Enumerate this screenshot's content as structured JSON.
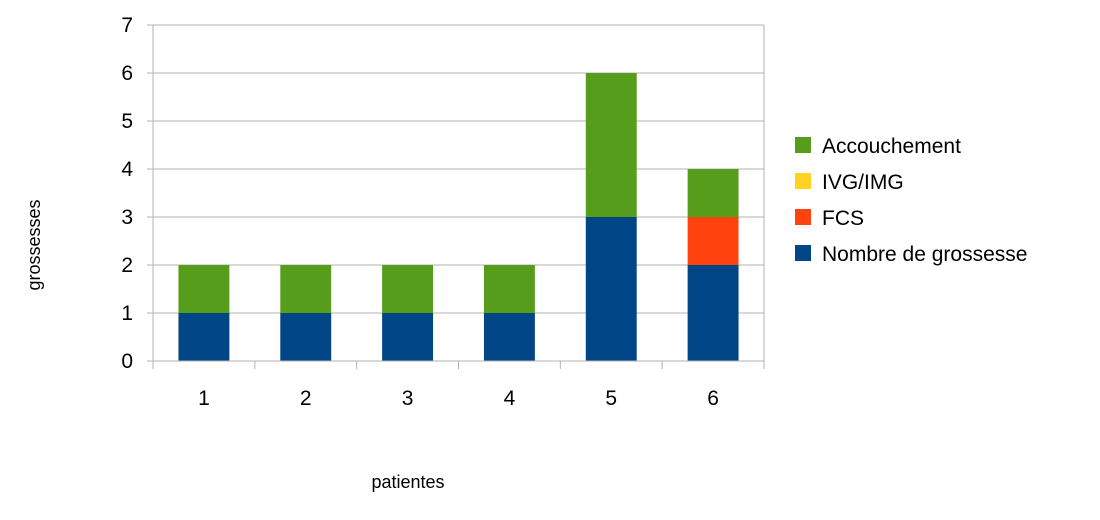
{
  "chart_data": {
    "type": "bar",
    "stacked": true,
    "categories": [
      "1",
      "2",
      "3",
      "4",
      "5",
      "6"
    ],
    "series": [
      {
        "name": "Nombre de grossesse",
        "color": "#004586",
        "values": [
          1,
          1,
          1,
          1,
          3,
          2
        ]
      },
      {
        "name": "FCS",
        "color": "#ff420e",
        "values": [
          0,
          0,
          0,
          0,
          0,
          1
        ]
      },
      {
        "name": "IVG/IMG",
        "color": "#ffd320",
        "values": [
          0,
          0,
          0,
          0,
          0,
          0
        ]
      },
      {
        "name": "Accouchement",
        "color": "#579d1c",
        "values": [
          1,
          1,
          1,
          1,
          3,
          1
        ]
      }
    ],
    "legend_order": [
      "Accouchement",
      "IVG/IMG",
      "FCS",
      "Nombre de grossesse"
    ],
    "xlabel": "patientes",
    "ylabel": "grossesses",
    "ylim": [
      0,
      7
    ],
    "yticks": [
      "0",
      "1",
      "2",
      "3",
      "4",
      "5",
      "6",
      "7"
    ],
    "grid": true,
    "legend": "right"
  }
}
